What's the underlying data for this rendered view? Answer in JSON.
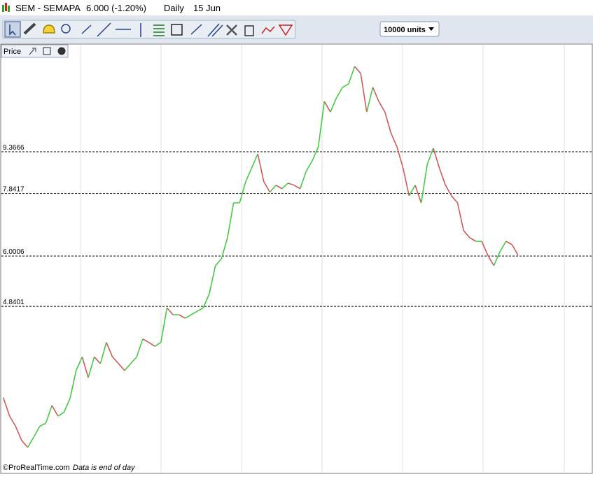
{
  "title_bar": {
    "symbol": "SEM - SEMAPA",
    "price": "6.000 (-1.20%)",
    "period": "Daily",
    "date": "15 Jun"
  },
  "toolbar": {
    "units": "10000 units"
  },
  "panel": {
    "label": "Price"
  },
  "footer": {
    "copyright": "©ProRealTime.com",
    "note": "Data is end of day"
  },
  "chart_data": {
    "type": "line",
    "log_scale": true,
    "up_color": "#3cc83c",
    "down_color": "#d05050",
    "ylim": [
      2.4,
      14.66
    ],
    "yticks": [
      9.3666,
      7.8417,
      6.0006,
      4.8401
    ],
    "grid": true,
    "values": [
      3.27,
      3.03,
      2.9,
      2.73,
      2.65,
      2.77,
      2.9,
      2.94,
      3.17,
      3.03,
      3.08,
      3.27,
      3.68,
      3.9,
      3.57,
      3.9,
      3.79,
      4.15,
      3.9,
      3.79,
      3.68,
      3.79,
      3.9,
      4.21,
      4.15,
      4.08,
      4.15,
      4.81,
      4.67,
      4.67,
      4.6,
      4.67,
      4.74,
      4.81,
      5.11,
      5.76,
      5.93,
      6.49,
      7.53,
      7.53,
      8.24,
      8.74,
      9.28,
      8.24,
      7.88,
      8.12,
      8.0,
      8.19,
      8.12,
      8.0,
      8.62,
      9.01,
      9.56,
      11.61,
      11.1,
      11.79,
      12.33,
      12.51,
      13.48,
      13.09,
      11.1,
      12.33,
      11.61,
      11.1,
      10.15,
      9.56,
      8.74,
      7.76,
      8.12,
      7.53,
      8.88,
      9.51,
      8.74,
      8.12,
      7.76,
      7.53,
      6.69,
      6.49,
      6.39,
      6.39,
      6.02,
      5.76,
      6.11,
      6.39,
      6.3,
      6.02
    ]
  }
}
